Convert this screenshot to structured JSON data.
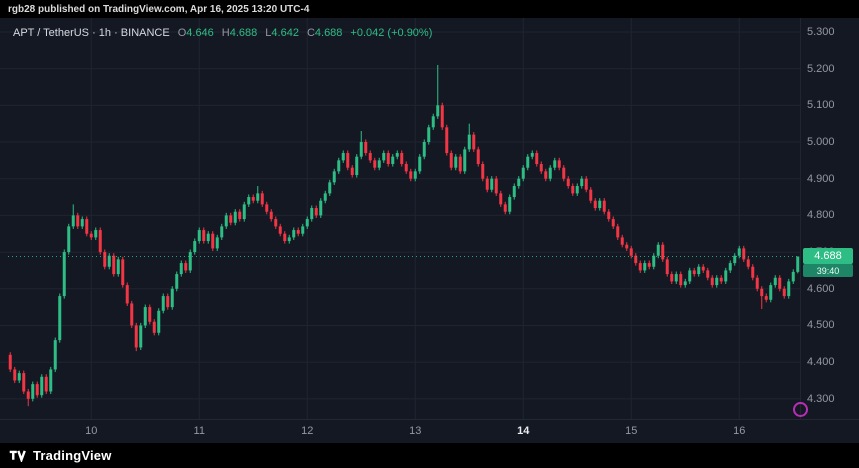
{
  "topbar": {
    "text": "rgb28 published on TradingView.com, Apr 16, 2025 13:20 UTC-4"
  },
  "legend": {
    "symbol": "APT / TetherUS · 1h · BINANCE",
    "o_label": "O",
    "o": "4.646",
    "h_label": "H",
    "h": "4.688",
    "l_label": "L",
    "l": "4.642",
    "c_label": "C",
    "c": "4.688",
    "change": "+0.042 (+0.90%)"
  },
  "footer": {
    "brand": "TradingView"
  },
  "colors": {
    "up": "#2ebd85",
    "down": "#f23645",
    "background": "#141823",
    "grid": "#1e2431",
    "axis_text": "#9598a1",
    "watermark": "#cb30c9"
  },
  "chart_data": {
    "type": "candlestick",
    "symbol": "APT / TetherUS",
    "interval": "1h",
    "exchange": "BINANCE",
    "current_price": "4.688",
    "countdown": "39:40",
    "y_ticks": [
      "5.300",
      "5.200",
      "5.100",
      "5.000",
      "4.900",
      "4.800",
      "4.700",
      "4.600",
      "4.500",
      "4.400",
      "4.300"
    ],
    "ylim": [
      4.245,
      5.338
    ],
    "day_ticks": [
      {
        "label": "10",
        "index": 18,
        "highlight": false
      },
      {
        "label": "11",
        "index": 42,
        "highlight": false
      },
      {
        "label": "12",
        "index": 66,
        "highlight": false
      },
      {
        "label": "13",
        "index": 90,
        "highlight": false
      },
      {
        "label": "14",
        "index": 114,
        "highlight": true
      },
      {
        "label": "15",
        "index": 138,
        "highlight": false
      },
      {
        "label": "16",
        "index": 162,
        "highlight": false
      }
    ],
    "first_open": 4.42,
    "default_wick": 0.007,
    "closes": [
      4.38,
      4.35,
      4.37,
      4.32,
      4.3,
      4.34,
      4.31,
      4.36,
      4.32,
      4.38,
      4.46,
      4.58,
      4.7,
      4.77,
      4.8,
      4.77,
      4.79,
      4.75,
      4.74,
      4.76,
      4.7,
      4.66,
      4.69,
      4.64,
      4.68,
      4.61,
      4.56,
      4.5,
      4.44,
      4.5,
      4.55,
      4.51,
      4.48,
      4.54,
      4.58,
      4.55,
      4.6,
      4.64,
      4.67,
      4.65,
      4.7,
      4.73,
      4.76,
      4.73,
      4.75,
      4.71,
      4.74,
      4.77,
      4.8,
      4.78,
      4.81,
      4.79,
      4.83,
      4.85,
      4.84,
      4.86,
      4.83,
      4.81,
      4.79,
      4.77,
      4.75,
      4.73,
      4.74,
      4.76,
      4.75,
      4.77,
      4.79,
      4.82,
      4.8,
      4.84,
      4.86,
      4.89,
      4.92,
      4.95,
      4.97,
      4.93,
      4.91,
      4.96,
      5.0,
      4.97,
      4.95,
      4.93,
      4.95,
      4.97,
      4.94,
      4.96,
      4.97,
      4.94,
      4.92,
      4.9,
      4.92,
      4.96,
      5.0,
      5.04,
      5.07,
      5.1,
      5.04,
      4.97,
      4.93,
      4.96,
      4.92,
      4.98,
      5.02,
      4.98,
      4.94,
      4.9,
      4.87,
      4.9,
      4.86,
      4.83,
      4.81,
      4.85,
      4.88,
      4.9,
      4.93,
      4.96,
      4.97,
      4.94,
      4.92,
      4.9,
      4.93,
      4.95,
      4.93,
      4.9,
      4.88,
      4.86,
      4.88,
      4.9,
      4.87,
      4.84,
      4.82,
      4.84,
      4.81,
      4.79,
      4.77,
      4.74,
      4.72,
      4.71,
      4.69,
      4.67,
      4.65,
      4.67,
      4.66,
      4.69,
      4.72,
      4.68,
      4.64,
      4.62,
      4.64,
      4.61,
      4.62,
      4.65,
      4.64,
      4.66,
      4.65,
      4.63,
      4.61,
      4.63,
      4.62,
      4.65,
      4.67,
      4.69,
      4.71,
      4.68,
      4.66,
      4.63,
      4.6,
      4.58,
      4.57,
      4.61,
      4.63,
      4.6,
      4.58,
      4.62,
      4.646,
      4.688
    ],
    "wick_overrides": {
      "4": {
        "l": 4.28
      },
      "14": {
        "h": 4.83
      },
      "28": {
        "l": 4.43
      },
      "55": {
        "h": 4.88
      },
      "78": {
        "h": 5.03
      },
      "95": {
        "h": 5.21
      },
      "102": {
        "h": 5.05
      },
      "167": {
        "l": 4.545
      },
      "175": {
        "h": 4.688,
        "l": 4.642
      }
    }
  }
}
